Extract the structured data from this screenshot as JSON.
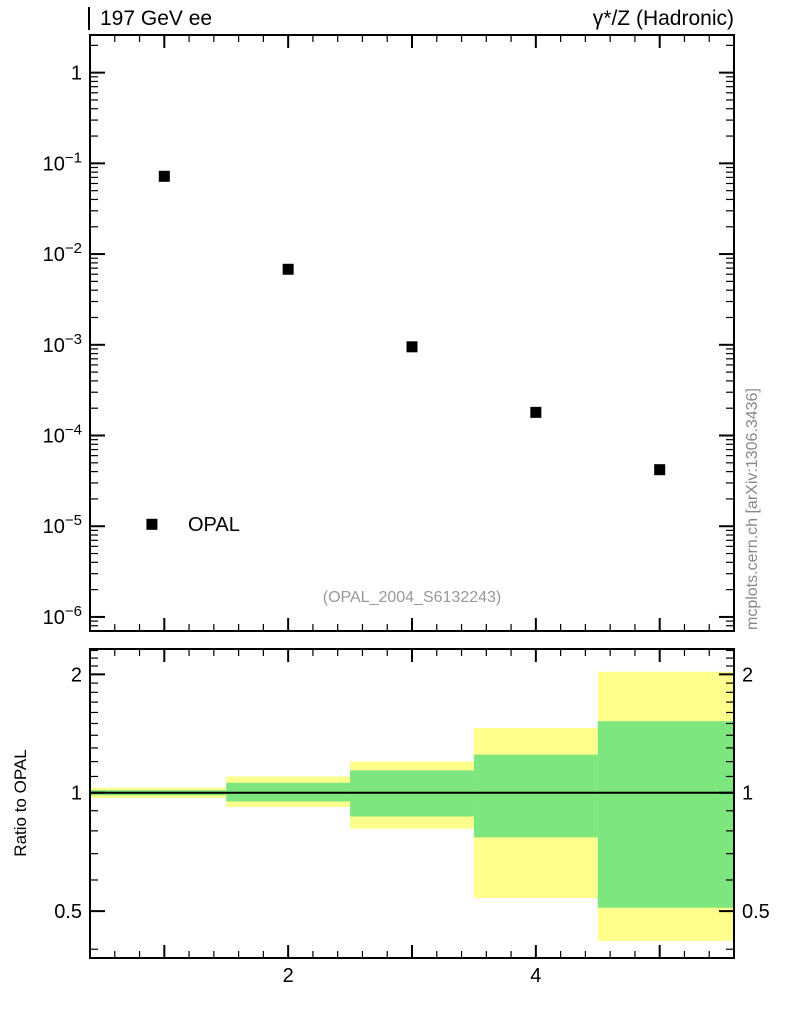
{
  "header": {
    "left": "197 GeV ee",
    "right": "γ*/Z (Hadronic)"
  },
  "side_note": "mcplots.cern.ch [arXiv:1306.3436]",
  "watermark": "(OPAL_2004_S6132243)",
  "legend": {
    "label": "OPAL"
  },
  "colors": {
    "yellow_band": "#ffff8c",
    "green_band": "#7ee67e",
    "marker": "#000000",
    "frame": "#000000",
    "watermark_gray": "#999999",
    "side_note_gray": "#888888"
  },
  "chart_data": [
    {
      "type": "scatter",
      "panel": "main",
      "title": "",
      "xlabel": "",
      "ylabel": "",
      "xlim": [
        0.4,
        5.6
      ],
      "yscale": "log",
      "ylim": [
        7e-07,
        2.6
      ],
      "grid": false,
      "yticks": [
        {
          "value": 1,
          "label": "1"
        },
        {
          "value": 0.1,
          "base": "10",
          "exp": "−1"
        },
        {
          "value": 0.01,
          "base": "10",
          "exp": "−2"
        },
        {
          "value": 0.001,
          "base": "10",
          "exp": "−3"
        },
        {
          "value": 0.0001,
          "base": "10",
          "exp": "−4"
        },
        {
          "value": 1e-05,
          "base": "10",
          "exp": "−5"
        },
        {
          "value": 1e-06,
          "base": "10",
          "exp": "−6"
        }
      ],
      "series": [
        {
          "name": "OPAL",
          "marker": "filled-square",
          "color": "#000000",
          "x": [
            1,
            2,
            3,
            4,
            5
          ],
          "y": [
            0.072,
            0.0068,
            0.00095,
            0.00018,
            4.2e-05
          ]
        }
      ],
      "legend_pos": {
        "x": 0.9,
        "y": 1.05e-05
      }
    },
    {
      "type": "area",
      "panel": "ratio",
      "ylabel": "Ratio to OPAL",
      "yscale": "log",
      "xlim": [
        0.4,
        5.6
      ],
      "ylim": [
        0.38,
        2.32
      ],
      "yticks": [
        0.5,
        1,
        2
      ],
      "yticks_minor": [
        0.4,
        0.6,
        0.7,
        0.8,
        0.9,
        1.1,
        1.2,
        1.3,
        1.4,
        1.5,
        1.6,
        1.7,
        1.8,
        1.9,
        2.1,
        2.2,
        2.3
      ],
      "xticks_labeled": [
        2,
        4
      ],
      "xticks_medium": [
        1,
        2,
        3,
        4,
        5
      ],
      "reference_line": 1,
      "bands": [
        {
          "x0": 0.4,
          "x1": 1.5,
          "yellow": [
            0.97,
            1.03
          ],
          "green": [
            0.985,
            1.015
          ]
        },
        {
          "x0": 1.5,
          "x1": 2.5,
          "yellow": [
            0.92,
            1.1
          ],
          "green": [
            0.95,
            1.06
          ]
        },
        {
          "x0": 2.5,
          "x1": 3.5,
          "yellow": [
            0.81,
            1.2
          ],
          "green": [
            0.87,
            1.14
          ]
        },
        {
          "x0": 3.5,
          "x1": 4.5,
          "yellow": [
            0.54,
            1.46
          ],
          "green": [
            0.77,
            1.25
          ]
        },
        {
          "x0": 4.5,
          "x1": 5.6,
          "yellow": [
            0.42,
            2.03
          ],
          "green": [
            0.51,
            1.52
          ]
        }
      ]
    }
  ]
}
